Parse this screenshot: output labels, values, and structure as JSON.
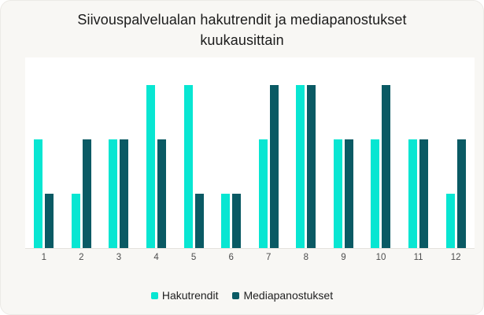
{
  "title": "Siivouspalvelualan hakutrendit ja mediapanostukset kuukausittain",
  "colors": {
    "card_background": "#f8f7f4",
    "plot_background": "#ffffff",
    "axis_line": "#e4e2de",
    "axis_label_text": "#4d4d4d",
    "title_text": "#1b1b1b",
    "series_hakutrendit": "#08e6d2",
    "series_mediapanostukset": "#0a5a64"
  },
  "chart_data": {
    "type": "bar",
    "title": "Siivouspalvelualan hakutrendit ja mediapanostukset kuukausittain",
    "categories": [
      "1",
      "2",
      "3",
      "4",
      "5",
      "6",
      "7",
      "8",
      "9",
      "10",
      "11",
      "12"
    ],
    "series": [
      {
        "name": "Hakutrendit",
        "color": "#08e6d2",
        "values": [
          2,
          1,
          2,
          3,
          3,
          1,
          2,
          3,
          2,
          2,
          2,
          1
        ]
      },
      {
        "name": "Mediapanostukset",
        "color": "#0a5a64",
        "values": [
          1,
          2,
          2,
          2,
          1,
          1,
          3,
          3,
          2,
          3,
          2,
          2
        ]
      }
    ],
    "xlabel": "",
    "ylabel": "",
    "ylim": [
      0,
      3.5
    ],
    "grid": false,
    "y_axis_visible": false,
    "legend_position": "bottom"
  }
}
